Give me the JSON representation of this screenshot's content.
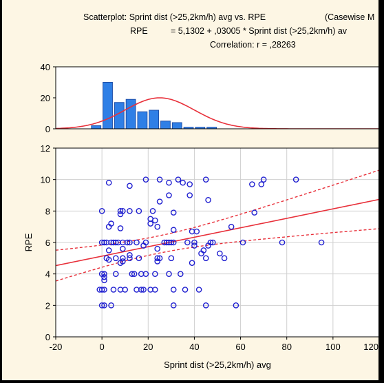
{
  "header": {
    "title": "Scatterplot: Sprint dist (>25,2km/h) avg vs. RPE",
    "casewise": "(Casewise M",
    "eq_lhs": "RPE",
    "eq_rhs": "= 5,1302 + ,03005 * Sprint dist (>25,2km/h) av",
    "correlation": "Correlation: r = ,28263"
  },
  "colors": {
    "background": "#fdf6e4",
    "bar_fill": "#2f7fe6",
    "bar_stroke": "#1f4fa8",
    "curve": "#e8303a",
    "point": "#2020d0",
    "grid": "#d0d0d0"
  },
  "chart_data": [
    {
      "type": "bar",
      "subtype": "histogram",
      "bins_x_start": [
        -10,
        -5,
        0,
        5,
        10,
        15,
        20,
        25,
        30,
        35,
        40,
        45,
        50,
        55,
        60,
        65,
        70,
        75,
        80,
        85,
        90,
        95,
        100,
        105,
        110,
        115
      ],
      "bin_width": 5,
      "values": [
        0,
        2,
        30,
        17,
        19,
        11,
        12,
        5,
        4,
        1,
        1,
        1,
        0,
        0,
        0,
        0,
        0,
        0,
        0,
        0,
        0,
        0,
        0,
        0,
        0,
        0
      ],
      "ylim": [
        0,
        40
      ],
      "y_ticks": [
        "0",
        "20",
        "40"
      ],
      "fit_curve": "normal",
      "normal_fit": {
        "mean": 25,
        "sd": 15,
        "peak": 20
      }
    },
    {
      "type": "scatter",
      "xlabel": "Sprint dist (>25,2km/h) avg",
      "ylabel": "RPE",
      "xlim": [
        -20,
        120
      ],
      "ylim": [
        0,
        12
      ],
      "x_ticks": [
        "-20",
        "0",
        "20",
        "40",
        "60",
        "80",
        "100",
        "120"
      ],
      "y_ticks": [
        "0",
        "2",
        "4",
        "6",
        "8",
        "10",
        "12"
      ],
      "grid": true,
      "regression": {
        "intercept": 5.1302,
        "slope": 0.03005
      },
      "points": [
        [
          0,
          2
        ],
        [
          1,
          2
        ],
        [
          4,
          2
        ],
        [
          31,
          2
        ],
        [
          45,
          2
        ],
        [
          58,
          2
        ],
        [
          -1,
          3
        ],
        [
          0,
          3
        ],
        [
          1,
          3
        ],
        [
          5,
          3
        ],
        [
          8,
          3
        ],
        [
          10,
          3
        ],
        [
          15,
          3
        ],
        [
          17,
          3
        ],
        [
          18,
          3
        ],
        [
          21,
          3
        ],
        [
          23,
          3
        ],
        [
          31,
          3
        ],
        [
          36,
          3
        ],
        [
          42,
          3
        ],
        [
          0,
          4
        ],
        [
          1,
          4
        ],
        [
          6,
          4
        ],
        [
          13,
          4
        ],
        [
          14,
          4
        ],
        [
          17,
          4
        ],
        [
          19,
          4
        ],
        [
          23,
          4
        ],
        [
          29,
          4
        ],
        [
          34,
          4
        ],
        [
          1,
          3.8
        ],
        [
          1,
          3.6
        ],
        [
          2,
          5
        ],
        [
          6,
          5
        ],
        [
          9,
          5
        ],
        [
          12,
          5
        ],
        [
          16,
          5
        ],
        [
          24,
          5
        ],
        [
          25,
          5
        ],
        [
          30,
          5
        ],
        [
          45,
          5
        ],
        [
          53,
          5
        ],
        [
          3,
          4.9
        ],
        [
          8,
          4.7
        ],
        [
          9,
          4.8
        ],
        [
          12,
          5.2
        ],
        [
          24,
          4.8
        ],
        [
          39,
          4.7
        ],
        [
          43,
          5.3
        ],
        [
          51,
          5.3
        ],
        [
          44,
          5.5
        ],
        [
          0,
          6
        ],
        [
          1,
          6
        ],
        [
          2,
          6
        ],
        [
          4,
          6
        ],
        [
          5,
          6
        ],
        [
          6,
          6
        ],
        [
          7,
          6
        ],
        [
          9,
          6
        ],
        [
          11,
          6
        ],
        [
          12,
          6
        ],
        [
          15,
          6
        ],
        [
          19,
          6
        ],
        [
          27,
          6
        ],
        [
          28,
          6
        ],
        [
          29,
          6
        ],
        [
          30,
          6
        ],
        [
          31,
          6
        ],
        [
          37,
          6
        ],
        [
          40,
          6
        ],
        [
          47,
          6
        ],
        [
          48,
          6
        ],
        [
          61,
          6
        ],
        [
          78,
          6
        ],
        [
          95,
          6
        ],
        [
          3,
          5.5
        ],
        [
          9,
          5.6
        ],
        [
          18,
          5.8
        ],
        [
          24,
          5.6
        ],
        [
          40,
          5.8
        ],
        [
          46,
          5.8
        ],
        [
          3,
          7
        ],
        [
          4,
          7.2
        ],
        [
          8,
          6.9
        ],
        [
          21,
          7.2
        ],
        [
          23,
          7.4
        ],
        [
          24,
          7
        ],
        [
          31,
          6.8
        ],
        [
          39,
          6.7
        ],
        [
          56,
          7
        ],
        [
          0,
          8
        ],
        [
          8,
          8
        ],
        [
          8,
          7.8
        ],
        [
          9,
          8
        ],
        [
          12,
          8
        ],
        [
          16,
          8
        ],
        [
          22,
          8
        ],
        [
          31,
          7.9
        ],
        [
          66,
          7.9
        ],
        [
          3,
          9.8
        ],
        [
          12,
          9.6
        ],
        [
          19,
          10
        ],
        [
          25,
          10
        ],
        [
          29,
          9.8
        ],
        [
          33,
          10
        ],
        [
          35,
          9.8
        ],
        [
          38,
          9.7
        ],
        [
          45,
          10
        ],
        [
          65,
          9.7
        ],
        [
          69,
          9.7
        ],
        [
          70,
          10
        ],
        [
          84,
          10
        ],
        [
          25,
          8.6
        ],
        [
          29,
          9
        ],
        [
          38,
          9
        ],
        [
          46,
          8.7
        ],
        [
          21,
          7.5
        ],
        [
          41,
          6.7
        ]
      ]
    }
  ]
}
